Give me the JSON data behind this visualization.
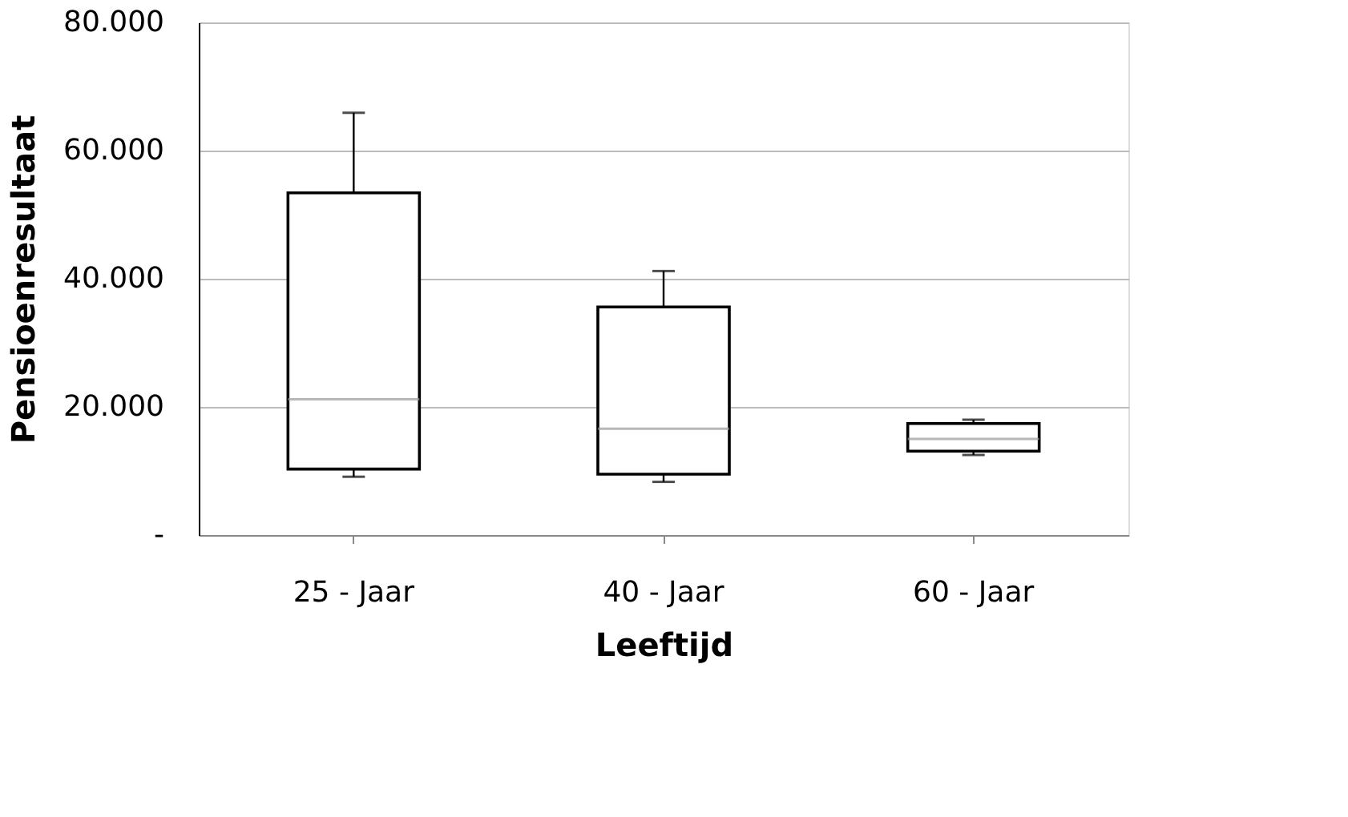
{
  "chart_data": {
    "type": "box",
    "xlabel": "Leeftijd",
    "ylabel": "Pensioenresultaat",
    "categories": [
      "25 - Jaar",
      "40 - Jaar",
      "60 - Jaar"
    ],
    "boxes": [
      {
        "low": 9100,
        "q1": 10300,
        "median": 21200,
        "q3": 53400,
        "high": 65900
      },
      {
        "low": 8300,
        "q1": 9500,
        "median": 16600,
        "q3": 35600,
        "high": 41200
      },
      {
        "low": 12500,
        "q1": 13100,
        "median": 15000,
        "q3": 17400,
        "high": 18000
      }
    ],
    "ylim": [
      0,
      80000
    ],
    "yticks": [
      {
        "value": 0,
        "label": "-"
      },
      {
        "value": 20000,
        "label": "20.000"
      },
      {
        "value": 40000,
        "label": "40.000"
      },
      {
        "value": 60000,
        "label": "60.000"
      },
      {
        "value": 80000,
        "label": "80.000"
      }
    ],
    "grid": "y"
  }
}
